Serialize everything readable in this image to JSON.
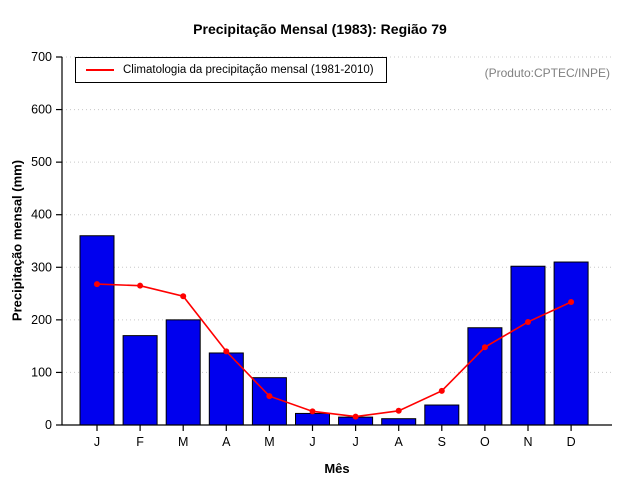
{
  "chart_data": {
    "type": "bar",
    "title": "Precipitação Mensal (1983): Região 79",
    "xlabel": "Mês",
    "ylabel": "Precipitação mensal (mm)",
    "ylim": [
      0,
      700
    ],
    "yticks": [
      0,
      100,
      200,
      300,
      400,
      500,
      600,
      700
    ],
    "categories": [
      "J",
      "F",
      "M",
      "A",
      "M",
      "J",
      "J",
      "A",
      "S",
      "O",
      "N",
      "D"
    ],
    "series": [
      {
        "name": "Precipitação mensal 1983",
        "type": "bar",
        "color": "#0000ee",
        "values": [
          360,
          170,
          200,
          137,
          90,
          22,
          15,
          12,
          38,
          185,
          302,
          310
        ]
      },
      {
        "name": "Climatologia da precipitação mensal (1981-2010)",
        "type": "line",
        "color": "#ff0000",
        "values": [
          268,
          265,
          245,
          140,
          55,
          26,
          16,
          27,
          65,
          148,
          196,
          234
        ]
      }
    ],
    "legend": {
      "label": "Climatologia da precipitação mensal (1981-2010)",
      "position": "top-left"
    },
    "annotation": "(Produto:CPTEC/INPE)",
    "grid": "horizontal-dotted",
    "grid_color": "#c8c8c8"
  }
}
